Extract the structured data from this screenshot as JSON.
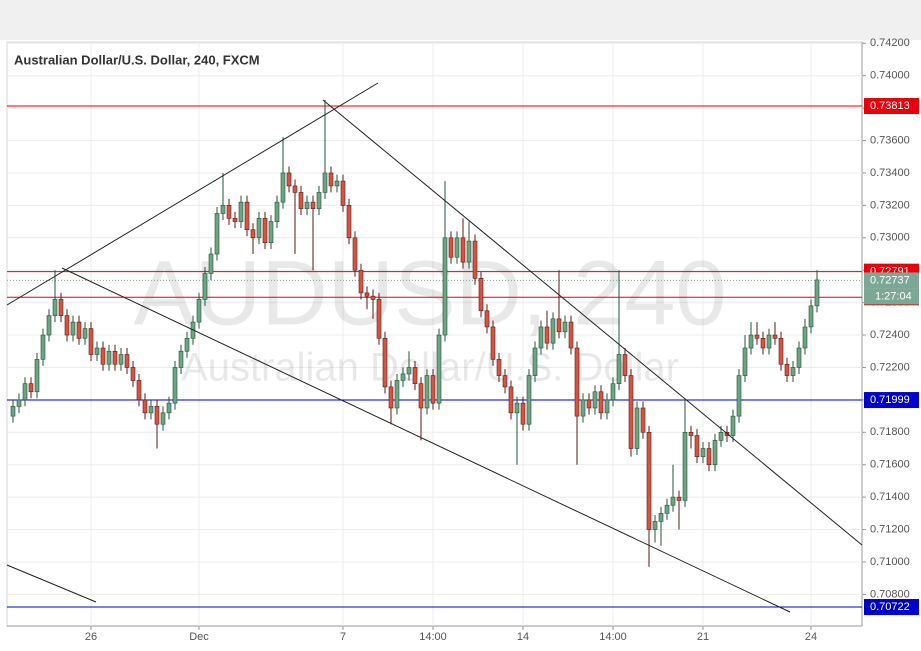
{
  "chart_data": {
    "type": "candlestick",
    "title": "Australian Dollar/U.S. Dollar, 240, FXCM",
    "watermark": {
      "symbol": "AUDUSD, 240",
      "description": "Australian Dollar/U.S. Dollar"
    },
    "categories": [
      null,
      null,
      null,
      null,
      null,
      null,
      null,
      null,
      null,
      null,
      null,
      null,
      null,
      "26",
      null,
      null,
      null,
      null,
      null,
      null,
      null,
      null,
      null,
      null,
      null,
      null,
      null,
      null,
      null,
      null,
      null,
      "Dec",
      null,
      null,
      null,
      null,
      null,
      null,
      null,
      null,
      null,
      null,
      null,
      null,
      null,
      null,
      null,
      null,
      null,
      null,
      null,
      null,
      null,
      null,
      null,
      "7",
      null,
      null,
      null,
      null,
      null,
      null,
      null,
      null,
      null,
      null,
      null,
      null,
      null,
      null,
      "14:00",
      null,
      null,
      null,
      null,
      null,
      null,
      null,
      null,
      null,
      null,
      null,
      null,
      null,
      null,
      "14",
      null,
      null,
      null,
      null,
      null,
      null,
      null,
      null,
      null,
      null,
      null,
      null,
      null,
      null,
      "14:00",
      null,
      null,
      null,
      null,
      null,
      null,
      null,
      null,
      null,
      null,
      null,
      null,
      null,
      null,
      "21",
      null,
      null,
      null,
      null,
      null,
      null,
      null,
      null,
      null,
      null,
      null,
      null,
      null,
      null,
      null,
      null,
      null,
      "24",
      null
    ],
    "open": [
      0.719,
      0.7196,
      0.72,
      0.721,
      0.7205,
      0.7225,
      0.724,
      0.7252,
      0.7262,
      0.7252,
      0.724,
      0.7248,
      0.7238,
      0.7244,
      0.7228,
      0.7232,
      0.7222,
      0.723,
      0.7222,
      0.7228,
      0.722,
      0.7212,
      0.72,
      0.7192,
      0.7196,
      0.7185,
      0.7192,
      0.7198,
      0.722,
      0.723,
      0.7238,
      0.7248,
      0.7262,
      0.7278,
      0.729,
      0.7315,
      0.732,
      0.7312,
      0.731,
      0.7322,
      0.7305,
      0.73,
      0.7312,
      0.7297,
      0.731,
      0.7322,
      0.734,
      0.7332,
      0.7328,
      0.7318,
      0.7322,
      0.7318,
      0.7328,
      0.734,
      0.7332,
      0.7335,
      0.732,
      0.73,
      0.728,
      0.7266,
      0.7264,
      0.7262,
      0.7238,
      0.7208,
      0.7195,
      0.7212,
      0.7216,
      0.722,
      0.721,
      0.7195,
      0.7215,
      0.7198,
      0.724,
      0.73,
      0.7288,
      0.73,
      0.7285,
      0.7298,
      0.7275,
      0.7255,
      0.7245,
      0.7225,
      0.7215,
      0.7208,
      0.7192,
      0.7198,
      0.7185,
      0.7215,
      0.7232,
      0.7245,
      0.7235,
      0.725,
      0.7242,
      0.7248,
      0.7232,
      0.719,
      0.72,
      0.7195,
      0.7205,
      0.7192,
      0.72,
      0.721,
      0.7228,
      0.7215,
      0.717,
      0.7195,
      0.718,
      0.712,
      0.7125,
      0.713,
      0.7135,
      0.714,
      0.7138,
      0.718,
      0.7178,
      0.7165,
      0.717,
      0.716,
      0.7175,
      0.718,
      0.7178,
      0.719,
      0.7215,
      0.7232,
      0.724,
      0.7238,
      0.7232,
      0.724,
      0.7238,
      0.7222,
      0.7215,
      0.722,
      0.7232,
      0.7245,
      0.7258
    ],
    "high": [
      0.72,
      0.7204,
      0.7214,
      0.7214,
      0.7229,
      0.7244,
      0.7256,
      0.728,
      0.7266,
      0.7256,
      0.7252,
      0.7252,
      0.7248,
      0.7248,
      0.7236,
      0.7236,
      0.7234,
      0.7234,
      0.7232,
      0.7232,
      0.7224,
      0.7216,
      0.7204,
      0.72,
      0.72,
      0.7196,
      0.7202,
      0.7224,
      0.7234,
      0.7242,
      0.7252,
      0.7266,
      0.7282,
      0.7294,
      0.7319,
      0.734,
      0.7324,
      0.7316,
      0.7326,
      0.7326,
      0.7309,
      0.7316,
      0.7316,
      0.7314,
      0.7326,
      0.7362,
      0.7344,
      0.7336,
      0.7332,
      0.7326,
      0.7326,
      0.7332,
      0.7385,
      0.7344,
      0.7339,
      0.7339,
      0.7324,
      0.7304,
      0.7284,
      0.727,
      0.7268,
      0.7266,
      0.7242,
      0.7212,
      0.7216,
      0.722,
      0.723,
      0.7224,
      0.7214,
      0.7219,
      0.7219,
      0.7244,
      0.7335,
      0.7304,
      0.7304,
      0.7312,
      0.731,
      0.7302,
      0.7279,
      0.7259,
      0.7249,
      0.7229,
      0.7219,
      0.7212,
      0.7202,
      0.7202,
      0.7219,
      0.7236,
      0.7249,
      0.7255,
      0.7254,
      0.728,
      0.7252,
      0.7252,
      0.7236,
      0.7204,
      0.7204,
      0.7209,
      0.7209,
      0.7204,
      0.7214,
      0.728,
      0.7232,
      0.7219,
      0.7199,
      0.7199,
      0.7184,
      0.7129,
      0.7134,
      0.7139,
      0.716,
      0.7144,
      0.72,
      0.7184,
      0.7182,
      0.7174,
      0.7174,
      0.7179,
      0.7184,
      0.7184,
      0.7194,
      0.7219,
      0.724,
      0.7248,
      0.7248,
      0.7242,
      0.7244,
      0.7248,
      0.7242,
      0.7226,
      0.7224,
      0.7236,
      0.725,
      0.7262,
      0.728
    ],
    "low": [
      0.7186,
      0.7192,
      0.7196,
      0.7201,
      0.7201,
      0.7221,
      0.7236,
      0.7248,
      0.7248,
      0.7236,
      0.7236,
      0.7234,
      0.7234,
      0.7224,
      0.7224,
      0.7218,
      0.7218,
      0.7218,
      0.7218,
      0.7216,
      0.7208,
      0.7196,
      0.7188,
      0.7188,
      0.717,
      0.7181,
      0.7188,
      0.7194,
      0.7216,
      0.7226,
      0.7234,
      0.7244,
      0.7258,
      0.7274,
      0.7286,
      0.7311,
      0.7308,
      0.7306,
      0.7306,
      0.7301,
      0.729,
      0.7296,
      0.7293,
      0.7293,
      0.7306,
      0.7318,
      0.7328,
      0.729,
      0.7314,
      0.7314,
      0.728,
      0.7314,
      0.7324,
      0.7328,
      0.7328,
      0.7316,
      0.7296,
      0.7276,
      0.7262,
      0.7256,
      0.725,
      0.7234,
      0.7204,
      0.7185,
      0.7191,
      0.7208,
      0.7212,
      0.7206,
      0.7175,
      0.7191,
      0.7194,
      0.7194,
      0.7236,
      0.7284,
      0.7284,
      0.7281,
      0.7281,
      0.7271,
      0.7251,
      0.7241,
      0.7221,
      0.7211,
      0.7204,
      0.7188,
      0.716,
      0.7181,
      0.7181,
      0.7211,
      0.7228,
      0.7231,
      0.7231,
      0.7238,
      0.7238,
      0.7228,
      0.716,
      0.7186,
      0.7191,
      0.7191,
      0.7188,
      0.7188,
      0.7196,
      0.7206,
      0.7211,
      0.7165,
      0.7166,
      0.7176,
      0.7097,
      0.7112,
      0.711,
      0.7126,
      0.7131,
      0.712,
      0.7134,
      0.717,
      0.7161,
      0.7161,
      0.7156,
      0.7156,
      0.7171,
      0.7174,
      0.7174,
      0.7186,
      0.7211,
      0.7228,
      0.7234,
      0.7228,
      0.7228,
      0.7234,
      0.7218,
      0.7211,
      0.7211,
      0.7216,
      0.7228,
      0.7241,
      0.7254
    ],
    "close": [
      0.7196,
      0.72,
      0.721,
      0.7205,
      0.7225,
      0.724,
      0.7252,
      0.7262,
      0.7252,
      0.724,
      0.7248,
      0.7238,
      0.7244,
      0.7228,
      0.7232,
      0.7222,
      0.723,
      0.7222,
      0.7228,
      0.722,
      0.7212,
      0.72,
      0.7192,
      0.7196,
      0.7185,
      0.7192,
      0.7198,
      0.722,
      0.723,
      0.7238,
      0.7248,
      0.7262,
      0.7278,
      0.729,
      0.7315,
      0.732,
      0.7312,
      0.731,
      0.7322,
      0.7305,
      0.73,
      0.7312,
      0.7297,
      0.731,
      0.7322,
      0.734,
      0.7332,
      0.7328,
      0.7318,
      0.7322,
      0.7318,
      0.7328,
      0.734,
      0.7332,
      0.7335,
      0.732,
      0.73,
      0.728,
      0.7266,
      0.7264,
      0.7262,
      0.7238,
      0.7208,
      0.7195,
      0.7212,
      0.7216,
      0.722,
      0.721,
      0.7195,
      0.7215,
      0.7198,
      0.724,
      0.73,
      0.7288,
      0.73,
      0.7285,
      0.7298,
      0.7275,
      0.7255,
      0.7245,
      0.7225,
      0.7215,
      0.7208,
      0.7192,
      0.7198,
      0.7185,
      0.7215,
      0.7232,
      0.7245,
      0.7235,
      0.725,
      0.7242,
      0.7248,
      0.7232,
      0.719,
      0.72,
      0.7195,
      0.7205,
      0.7192,
      0.72,
      0.721,
      0.7228,
      0.7215,
      0.717,
      0.7195,
      0.718,
      0.712,
      0.7125,
      0.713,
      0.7135,
      0.714,
      0.7138,
      0.718,
      0.7178,
      0.7165,
      0.717,
      0.716,
      0.7175,
      0.718,
      0.7178,
      0.719,
      0.7215,
      0.7232,
      0.724,
      0.7238,
      0.7232,
      0.724,
      0.7238,
      0.7222,
      0.7215,
      0.722,
      0.7232,
      0.7245,
      0.7258,
      0.7274
    ],
    "up_color": "#6ba583",
    "down_color": "#d75442",
    "ylim": [
      0.70605,
      0.74208
    ],
    "yticks": [
      {
        "value": 0.742,
        "label": "0.74200"
      },
      {
        "value": 0.74,
        "label": "0.74000"
      },
      {
        "value": 0.738,
        "label": "0.73800"
      },
      {
        "value": 0.736,
        "label": "0.73600"
      },
      {
        "value": 0.734,
        "label": "0.73400"
      },
      {
        "value": 0.732,
        "label": "0.73200"
      },
      {
        "value": 0.73,
        "label": "0.73000"
      },
      {
        "value": 0.728,
        "label": "0.72800"
      },
      {
        "value": 0.726,
        "label": "0.72600"
      },
      {
        "value": 0.724,
        "label": "0.72400"
      },
      {
        "value": 0.722,
        "label": "0.72200"
      },
      {
        "value": 0.72,
        "label": "0.72000"
      },
      {
        "value": 0.718,
        "label": "0.71800"
      },
      {
        "value": 0.716,
        "label": "0.71600"
      },
      {
        "value": 0.714,
        "label": "0.71400"
      },
      {
        "value": 0.712,
        "label": "0.71200"
      },
      {
        "value": 0.71,
        "label": "0.71000"
      },
      {
        "value": 0.708,
        "label": "0.70800"
      }
    ],
    "grid": true,
    "levels": [
      {
        "value": 0.73813,
        "color": "#e8000b"
      },
      {
        "value": 0.72791,
        "color": "#e8000b"
      },
      {
        "value": 0.72633,
        "color": "#e8000b"
      },
      {
        "value": 0.71999,
        "color": "#0000c8"
      },
      {
        "value": 0.70722,
        "color": "#0000c8"
      }
    ],
    "last_price": {
      "value": 0.72737,
      "countdown": "1:27:04",
      "color": "#7aa895"
    }
  }
}
